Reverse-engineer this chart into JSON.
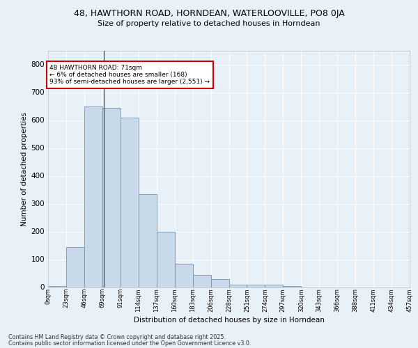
{
  "title_line1": "48, HAWTHORN ROAD, HORNDEAN, WATERLOOVILLE, PO8 0JA",
  "title_line2": "Size of property relative to detached houses in Horndean",
  "xlabel": "Distribution of detached houses by size in Horndean",
  "ylabel": "Number of detached properties",
  "bin_labels": [
    "0sqm",
    "23sqm",
    "46sqm",
    "69sqm",
    "91sqm",
    "114sqm",
    "137sqm",
    "160sqm",
    "183sqm",
    "206sqm",
    "228sqm",
    "251sqm",
    "274sqm",
    "297sqm",
    "320sqm",
    "343sqm",
    "366sqm",
    "388sqm",
    "411sqm",
    "434sqm",
    "457sqm"
  ],
  "bar_heights": [
    5,
    145,
    650,
    645,
    610,
    335,
    200,
    85,
    45,
    28,
    10,
    10,
    8,
    3,
    0,
    0,
    0,
    0,
    0,
    0
  ],
  "bar_color": "#c8d9ea",
  "bar_edge_color": "#6699bb",
  "annotation_text": "48 HAWTHORN ROAD: 71sqm\n← 6% of detached houses are smaller (168)\n93% of semi-detached houses are larger (2,551) →",
  "annotation_box_color": "#ffffff",
  "annotation_box_edge_color": "#cc0000",
  "vline_color": "#444444",
  "background_color": "#e8f0f8",
  "plot_bg_color": "#e8f0f8",
  "grid_color": "#ffffff",
  "ylim": [
    0,
    850
  ],
  "yticks": [
    0,
    100,
    200,
    300,
    400,
    500,
    600,
    700,
    800
  ],
  "footer_line1": "Contains HM Land Registry data © Crown copyright and database right 2025.",
  "footer_line2": "Contains public sector information licensed under the Open Government Licence v3.0."
}
